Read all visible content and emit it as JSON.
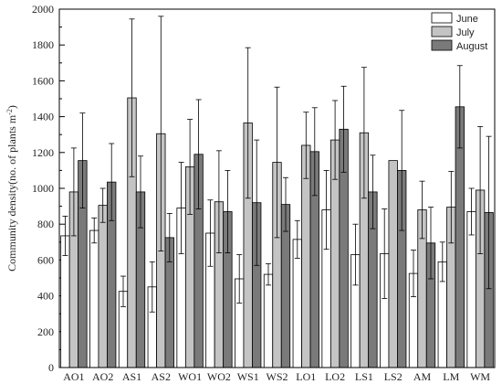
{
  "chart_data": {
    "type": "bar",
    "title": "",
    "xlabel": "",
    "ylabel": "Community density(no. of plants m",
    "ylabel_superscript": "-2",
    "ylabel_suffix": ")",
    "ylim": [
      0,
      2000
    ],
    "yticks": [
      0,
      200,
      400,
      600,
      800,
      1000,
      1200,
      1400,
      1600,
      1800,
      2000
    ],
    "categories": [
      "AO1",
      "AO2",
      "AS1",
      "AS2",
      "WO1",
      "WO2",
      "WS1",
      "WS2",
      "LO1",
      "LO2",
      "LS1",
      "LS2",
      "AM",
      "LM",
      "WM"
    ],
    "legend_position": "top-right",
    "series": [
      {
        "name": "June",
        "color": "#ffffff",
        "values": [
          735,
          765,
          425,
          450,
          890,
          750,
          495,
          520,
          715,
          880,
          630,
          635,
          525,
          590,
          870
        ],
        "errors": [
          110,
          70,
          85,
          140,
          255,
          185,
          135,
          60,
          105,
          220,
          170,
          250,
          130,
          110,
          130
        ]
      },
      {
        "name": "July",
        "color": "#c4c4c4",
        "values": [
          980,
          905,
          1505,
          1305,
          1120,
          925,
          1365,
          1145,
          1240,
          1270,
          1310,
          1155,
          880,
          895,
          990
        ],
        "errors": [
          245,
          95,
          440,
          655,
          265,
          285,
          420,
          420,
          185,
          220,
          365,
          0,
          160,
          200,
          355
        ]
      },
      {
        "name": "August",
        "color": "#7a7a7a",
        "values": [
          1155,
          1035,
          980,
          725,
          1190,
          870,
          920,
          910,
          1205,
          1330,
          980,
          1100,
          695,
          1455,
          865
        ],
        "errors": [
          265,
          215,
          200,
          135,
          305,
          230,
          350,
          150,
          245,
          240,
          205,
          335,
          200,
          230,
          425
        ]
      }
    ]
  }
}
